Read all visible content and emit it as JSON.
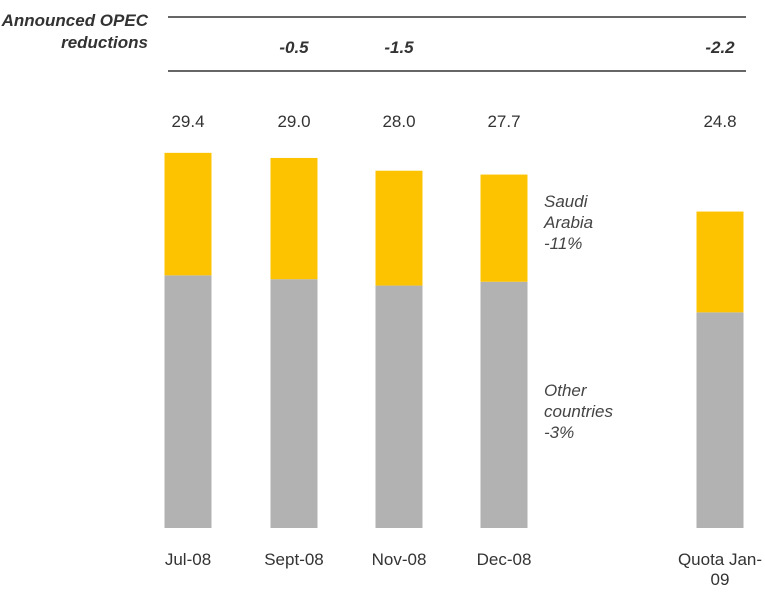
{
  "chart_data": {
    "type": "bar",
    "annotation_label": "Announced OPEC reductions",
    "reductions": [
      null,
      -0.5,
      -1.5,
      null,
      -2.2
    ],
    "categories": [
      "Jul-08",
      "Sept-08",
      "Nov-08",
      "Dec-08",
      "Quota Jan-09"
    ],
    "total_labels": [
      "29.4",
      "29.0",
      "28.0",
      "27.7",
      "24.8"
    ],
    "series": [
      {
        "name": "Other countries",
        "change": "-3%",
        "color": "#b2b2b2",
        "values": [
          19.8,
          19.5,
          19.0,
          19.3,
          16.9
        ]
      },
      {
        "name": "Saudi Arabia",
        "change": "-11%",
        "color": "#fdc300",
        "values": [
          9.6,
          9.5,
          9.0,
          8.4,
          7.9
        ]
      }
    ],
    "ylim": [
      0,
      30
    ]
  }
}
